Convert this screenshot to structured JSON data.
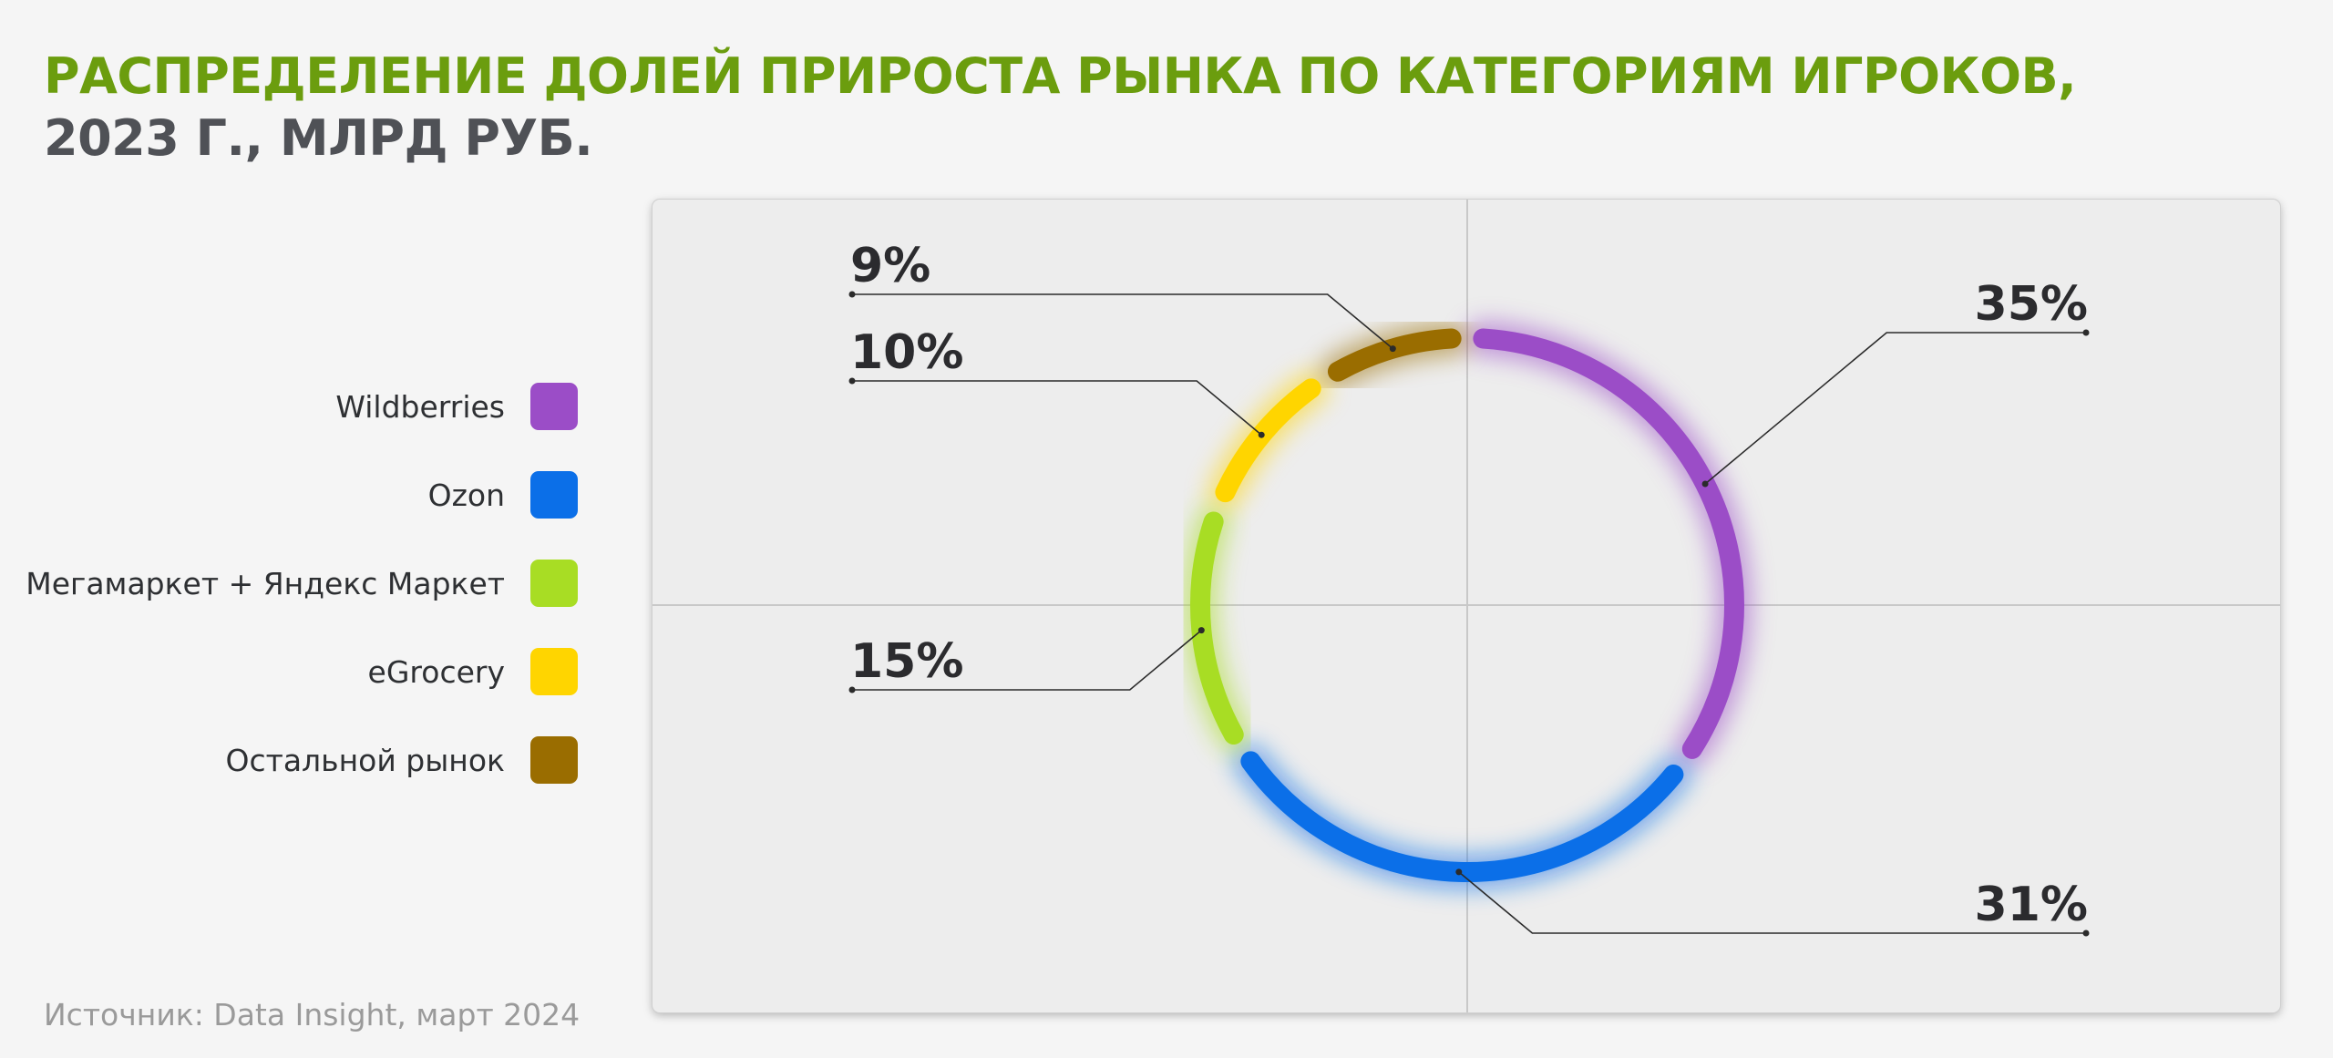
{
  "title": {
    "line1": "РАСПРЕДЕЛЕНИЕ ДОЛЕЙ ПРИРОСТА РЫНКА ПО КАТЕГОРИЯМ ИГРОКОВ,",
    "line2": "2023 Г., МЛРД РУБ."
  },
  "source": "Источник: Data Insight, март 2024",
  "legend": [
    {
      "label": "Wildberries",
      "color": "#9b4dc7"
    },
    {
      "label": "Ozon",
      "color": "#0b6fe8"
    },
    {
      "label": "Мегамаркет + Яндекс Маркет",
      "color": "#a8dd24"
    },
    {
      "label": "eGrocery",
      "color": "#ffd500"
    },
    {
      "label": "Остальной рынок",
      "color": "#9a6d00"
    }
  ],
  "chart_data": {
    "type": "pie",
    "title": "РАСПРЕДЕЛЕНИЕ ДОЛЕЙ ПРИРОСТА РЫНКА ПО КАТЕГОРИЯМ ИГРОКОВ, 2023 Г., МЛРД РУБ.",
    "slices": [
      {
        "label": "Wildberries",
        "value": 35,
        "display": "35%",
        "color": "#9b4dc7"
      },
      {
        "label": "Ozon",
        "value": 31,
        "display": "31%",
        "color": "#0b6fe8"
      },
      {
        "label": "Мегамаркет + Яндекс Маркет",
        "value": 15,
        "display": "15%",
        "color": "#a8dd24"
      },
      {
        "label": "eGrocery",
        "value": 10,
        "display": "10%",
        "color": "#ffd500"
      },
      {
        "label": "Остальной рынок",
        "value": 9,
        "display": "9%",
        "color": "#9a6d00"
      }
    ],
    "legend_position": "left"
  }
}
